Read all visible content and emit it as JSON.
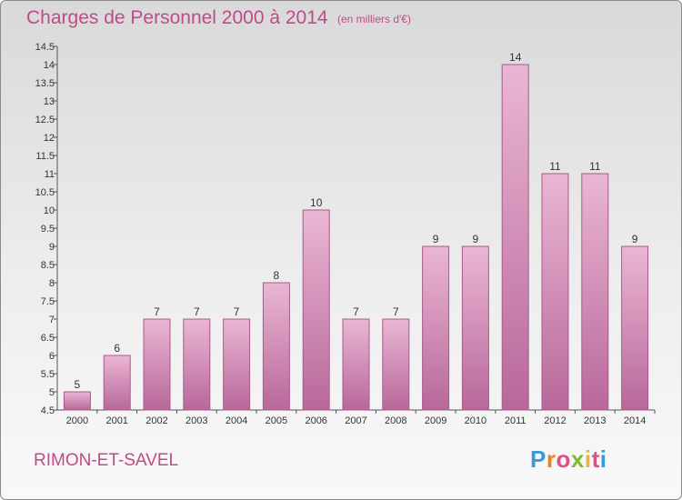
{
  "header": {
    "title": "Charges de Personnel 2000 à 2014",
    "subtitle": "(en milliers d'€)"
  },
  "footer": {
    "location": "RIMON-ET-SAVEL",
    "logo_letters": [
      "P",
      "r",
      "o",
      "x",
      "i",
      "t",
      "i"
    ]
  },
  "colors": {
    "bar_light": "#eab6d4",
    "bar_dark": "#b8689a",
    "bar_edge": "#a85b8b",
    "accent": "#c04a8a",
    "logo": [
      "#3a9ad9",
      "#f07f1a",
      "#e44c8a",
      "#7dbb2c",
      "#f2b233",
      "#e44c8a",
      "#3a9ad9"
    ]
  },
  "chart_data": {
    "type": "bar",
    "title": "Charges de Personnel 2000 à 2014",
    "unit": "(en milliers d'€)",
    "categories": [
      "2000",
      "2001",
      "2002",
      "2003",
      "2004",
      "2005",
      "2006",
      "2007",
      "2008",
      "2009",
      "2010",
      "2011",
      "2012",
      "2013",
      "2014"
    ],
    "values": [
      5,
      6,
      7,
      7,
      7,
      8,
      10,
      7,
      7,
      9,
      9,
      14,
      11,
      11,
      9
    ],
    "value_labels": [
      "5",
      "6",
      "7",
      "7",
      "7",
      "8",
      "10",
      "7",
      "7",
      "9",
      "9",
      "14",
      "11",
      "11",
      "9"
    ],
    "ylim": [
      4.5,
      14.5
    ],
    "yticks": [
      "4.5",
      "5",
      "5.5",
      "6",
      "6.5",
      "7",
      "7.5",
      "8",
      "8.5",
      "9",
      "9.5",
      "10",
      "10.5",
      "11",
      "11.5",
      "12",
      "12.5",
      "13",
      "13.5",
      "14",
      "14.5"
    ],
    "grid": false,
    "legend": "none"
  }
}
